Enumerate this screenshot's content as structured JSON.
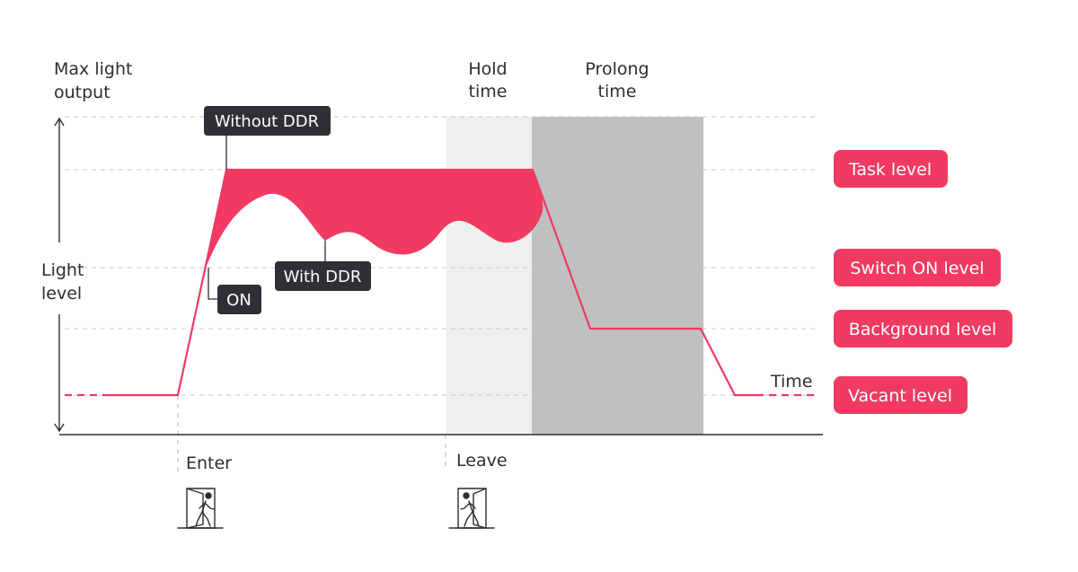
{
  "colors": {
    "accent": "#f03a62",
    "callout": "#2f2f35",
    "hold_zone": "#efefef",
    "prolong_zone": "#bfc0c2",
    "guide": "#c8c8c8",
    "text": "#2d2d33"
  },
  "axis": {
    "max_light_line1": "Max light",
    "max_light_line2": "output",
    "light_level_line1": "Light",
    "light_level_line2": "level",
    "time": "Time"
  },
  "zones": {
    "hold_line1": "Hold",
    "hold_line2": "time",
    "prolong_line1": "Prolong",
    "prolong_line2": "time"
  },
  "levels": {
    "task": "Task level",
    "switch_on": "Switch ON level",
    "background": "Background level",
    "vacant": "Vacant level"
  },
  "callouts": {
    "without_ddr": "Without DDR",
    "with_ddr": "With DDR",
    "on": "ON"
  },
  "events": {
    "enter": "Enter",
    "leave": "Leave",
    "enter_icon": "person-entering-door-icon",
    "leave_icon": "person-leaving-door-icon"
  }
}
